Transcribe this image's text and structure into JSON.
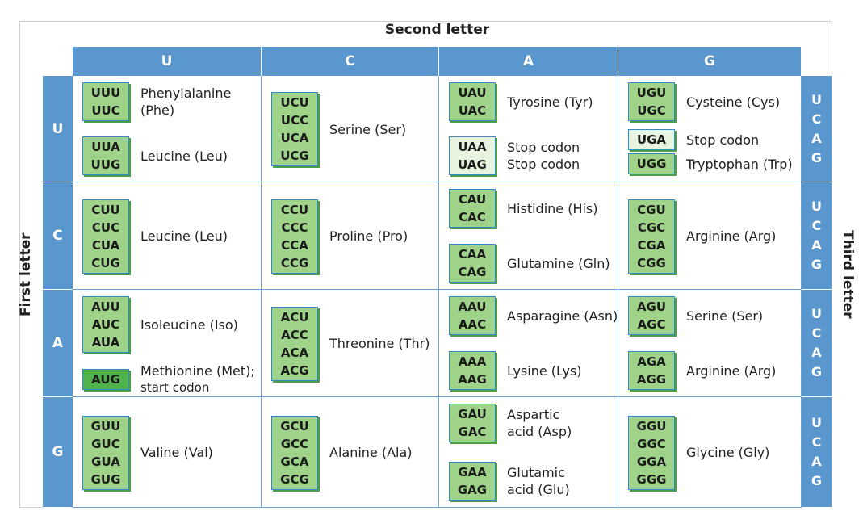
{
  "titles": {
    "second": "Second letter",
    "first": "First letter",
    "third": "Third letter"
  },
  "columns": [
    "U",
    "C",
    "A",
    "G"
  ],
  "rows": [
    "U",
    "C",
    "A",
    "G"
  ],
  "third_letters": [
    "U",
    "C",
    "A",
    "G"
  ],
  "cells": [
    [
      [
        {
          "codons": [
            "UUU",
            "UUC"
          ],
          "aa": [
            "Phenylalanine",
            "(Phe)"
          ],
          "kind": "normal"
        },
        {
          "codons": [
            "UUA",
            "UUG"
          ],
          "aa": [
            "Leucine (Leu)"
          ],
          "kind": "normal"
        }
      ],
      [
        {
          "codons": [
            "UCU",
            "UCC",
            "UCA",
            "UCG"
          ],
          "aa": [
            "Serine (Ser)"
          ],
          "kind": "normal"
        }
      ],
      [
        {
          "codons": [
            "UAU",
            "UAC"
          ],
          "aa": [
            "Tyrosine (Tyr)"
          ],
          "kind": "normal"
        },
        {
          "codons": [
            "UAA",
            "UAG"
          ],
          "aa": [
            "Stop codon",
            "Stop codon"
          ],
          "kind": "stop"
        }
      ],
      [
        {
          "codons": [
            "UGU",
            "UGC"
          ],
          "aa": [
            "Cysteine (Cys)"
          ],
          "kind": "normal"
        },
        {
          "codons": [
            "UGA"
          ],
          "aa": [
            "Stop codon"
          ],
          "kind": "stop"
        },
        {
          "codons": [
            "UGG"
          ],
          "aa": [
            "Tryptophan (Trp)"
          ],
          "kind": "normal"
        }
      ]
    ],
    [
      [
        {
          "codons": [
            "CUU",
            "CUC",
            "CUA",
            "CUG"
          ],
          "aa": [
            "Leucine (Leu)"
          ],
          "kind": "normal"
        }
      ],
      [
        {
          "codons": [
            "CCU",
            "CCC",
            "CCA",
            "CCG"
          ],
          "aa": [
            "Proline (Pro)"
          ],
          "kind": "normal"
        }
      ],
      [
        {
          "codons": [
            "CAU",
            "CAC"
          ],
          "aa": [
            "Histidine (His)"
          ],
          "kind": "normal"
        },
        {
          "codons": [
            "CAA",
            "CAG"
          ],
          "aa": [
            "Glutamine (Gln)"
          ],
          "kind": "normal"
        }
      ],
      [
        {
          "codons": [
            "CGU",
            "CGC",
            "CGA",
            "CGG"
          ],
          "aa": [
            "Arginine (Arg)"
          ],
          "kind": "normal"
        }
      ]
    ],
    [
      [
        {
          "codons": [
            "AUU",
            "AUC",
            "AUA"
          ],
          "aa": [
            "Isoleucine (Iso)"
          ],
          "kind": "normal"
        },
        {
          "codons": [
            "AUG"
          ],
          "aa": [
            "Methionine (Met);",
            "start codon"
          ],
          "kind": "start"
        }
      ],
      [
        {
          "codons": [
            "ACU",
            "ACC",
            "ACA",
            "ACG"
          ],
          "aa": [
            "Threonine (Thr)"
          ],
          "kind": "normal"
        }
      ],
      [
        {
          "codons": [
            "AAU",
            "AAC"
          ],
          "aa": [
            "Asparagine (Asn)"
          ],
          "kind": "normal"
        },
        {
          "codons": [
            "AAA",
            "AAG"
          ],
          "aa": [
            "Lysine (Lys)"
          ],
          "kind": "normal"
        }
      ],
      [
        {
          "codons": [
            "AGU",
            "AGC"
          ],
          "aa": [
            "Serine (Ser)"
          ],
          "kind": "normal"
        },
        {
          "codons": [
            "AGA",
            "AGG"
          ],
          "aa": [
            "Arginine (Arg)"
          ],
          "kind": "normal"
        }
      ]
    ],
    [
      [
        {
          "codons": [
            "GUU",
            "GUC",
            "GUA",
            "GUG"
          ],
          "aa": [
            "Valine (Val)"
          ],
          "kind": "normal"
        }
      ],
      [
        {
          "codons": [
            "GCU",
            "GCC",
            "GCA",
            "GCG"
          ],
          "aa": [
            "Alanine (Ala)"
          ],
          "kind": "normal"
        }
      ],
      [
        {
          "codons": [
            "GAU",
            "GAC"
          ],
          "aa": [
            "Aspartic",
            "acid (Asp)"
          ],
          "kind": "normal"
        },
        {
          "codons": [
            "GAA",
            "GAG"
          ],
          "aa": [
            "Glutamic",
            "acid (Glu)"
          ],
          "kind": "normal"
        }
      ],
      [
        {
          "codons": [
            "GGU",
            "GGC",
            "GGA",
            "GGG"
          ],
          "aa": [
            "Glycine (Gly)"
          ],
          "kind": "normal"
        }
      ]
    ]
  ],
  "colors": {
    "header_blue": "#5b97cf",
    "codon_green": "#9fd38a",
    "stop_green": "#e8f4e0",
    "start_green": "#4fb24a"
  }
}
